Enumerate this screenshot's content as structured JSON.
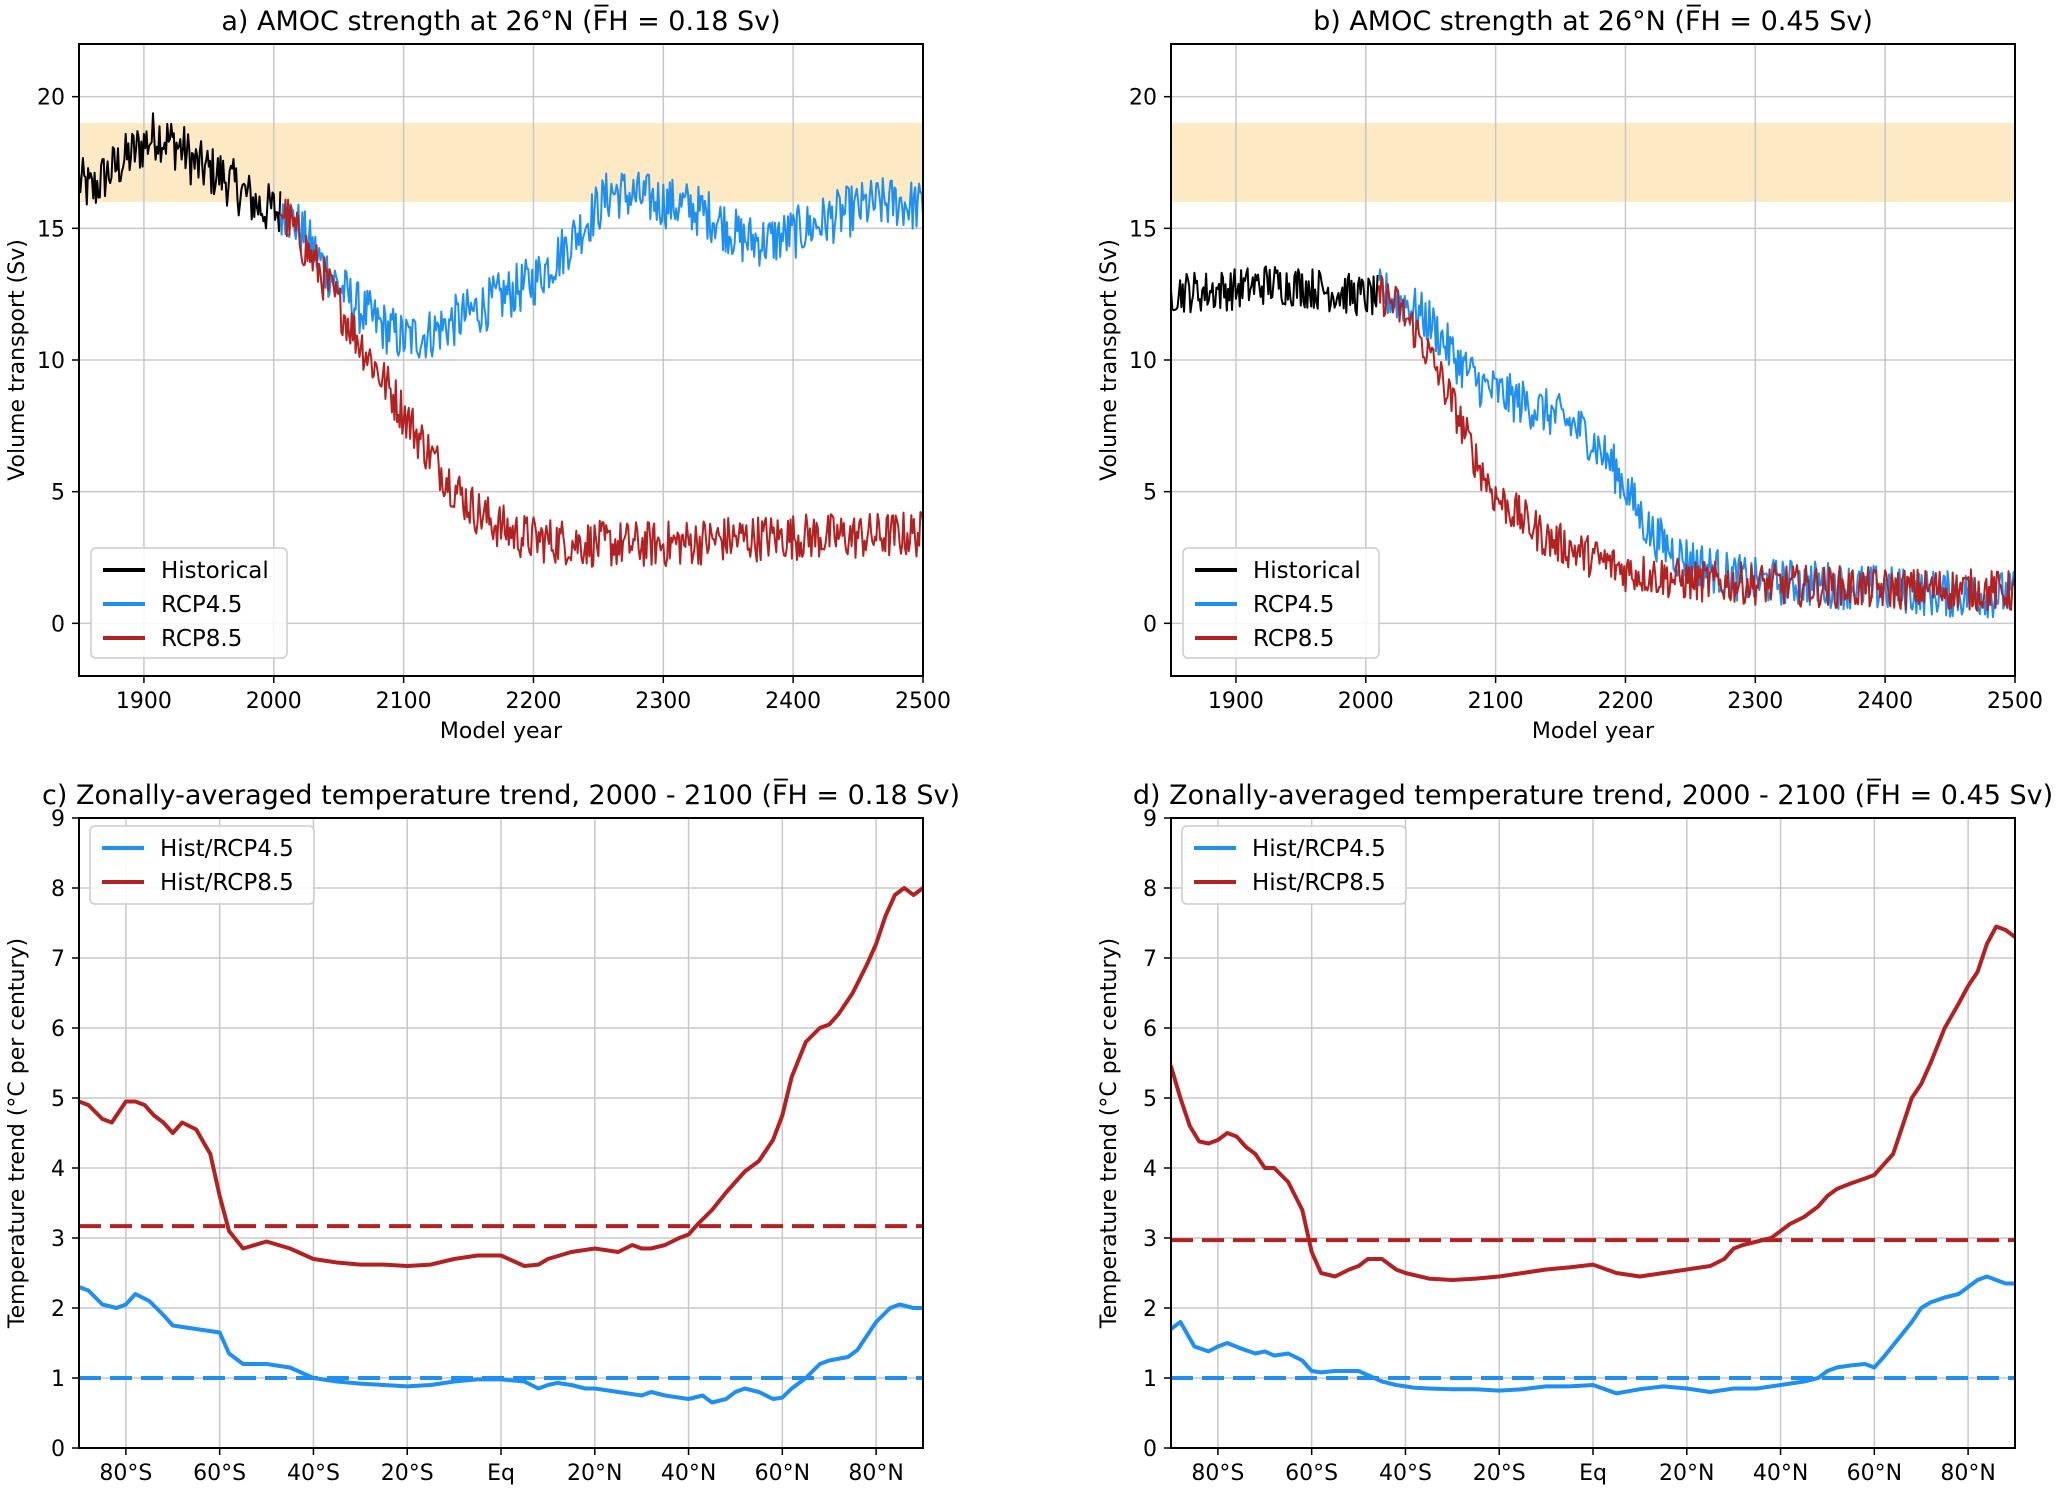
{
  "chart_data": [
    {
      "id": "a",
      "type": "line",
      "title": "a) AMOC strength at 26°N (F̅H = 0.18 Sv)",
      "xlabel": "Model year",
      "ylabel": "Volume transport (Sv)",
      "xlim": [
        1850,
        2500
      ],
      "ylim": [
        -2,
        22
      ],
      "xticks": [
        1900,
        2000,
        2100,
        2200,
        2300,
        2400,
        2500
      ],
      "xtick_labels": [
        "1900",
        "2000",
        "2100",
        "2200",
        "2300",
        "2400",
        "2500"
      ],
      "yticks": [
        0,
        5,
        10,
        15,
        20
      ],
      "ytick_labels": [
        "0",
        "5",
        "10",
        "15",
        "20"
      ],
      "grid": true,
      "observed_band": {
        "ymin": 16,
        "ymax": 19,
        "color": "#fde9c4"
      },
      "legend": {
        "placement": "lower-left",
        "labels": [
          "Historical",
          "RCP4.5",
          "RCP8.5"
        ]
      },
      "series": [
        {
          "name": "Historical",
          "color": "#000000",
          "noise": 1.0,
          "x": [
            1850,
            1860,
            1870,
            1880,
            1890,
            1900,
            1910,
            1920,
            1930,
            1940,
            1950,
            1960,
            1970,
            1980,
            1990,
            2000,
            2005
          ],
          "y": [
            16.8,
            16.4,
            17.0,
            17.4,
            17.8,
            18.2,
            18.6,
            18.3,
            18.0,
            17.4,
            17.2,
            17.0,
            16.6,
            16.2,
            15.8,
            15.7,
            15.6
          ]
        },
        {
          "name": "RCP4.5",
          "color": "#1f8ff0",
          "noise": 1.0,
          "x": [
            2005,
            2020,
            2035,
            2050,
            2065,
            2080,
            2100,
            2120,
            2140,
            2160,
            2180,
            2200,
            2220,
            2240,
            2260,
            2280,
            2300,
            2320,
            2340,
            2360,
            2380,
            2400,
            2420,
            2440,
            2460,
            2480,
            2500
          ],
          "y": [
            15.8,
            15.0,
            13.8,
            12.8,
            12.0,
            11.4,
            10.8,
            11.0,
            11.5,
            12.0,
            12.5,
            13.0,
            14.0,
            15.2,
            16.4,
            16.2,
            16.0,
            15.8,
            15.4,
            14.6,
            14.5,
            14.8,
            15.2,
            15.6,
            15.9,
            16.0,
            15.8
          ]
        },
        {
          "name": "RCP8.5",
          "color": "#b22222",
          "noise": 0.9,
          "x": [
            2005,
            2020,
            2035,
            2050,
            2065,
            2080,
            2095,
            2110,
            2125,
            2140,
            2155,
            2170,
            2185,
            2200,
            2250,
            2300,
            2350,
            2400,
            2450,
            2500
          ],
          "y": [
            15.8,
            14.6,
            13.4,
            12.1,
            10.8,
            9.6,
            8.4,
            7.2,
            6.1,
            5.1,
            4.3,
            3.8,
            3.4,
            3.2,
            3.0,
            3.0,
            3.2,
            3.3,
            3.3,
            3.4
          ]
        }
      ]
    },
    {
      "id": "b",
      "type": "line",
      "title": "b) AMOC strength at 26°N (F̅H = 0.45 Sv)",
      "xlabel": "Model year",
      "ylabel": "Volume transport (Sv)",
      "xlim": [
        1850,
        2500
      ],
      "ylim": [
        -2,
        22
      ],
      "xticks": [
        1900,
        2000,
        2100,
        2200,
        2300,
        2400,
        2500
      ],
      "xtick_labels": [
        "1900",
        "2000",
        "2100",
        "2200",
        "2300",
        "2400",
        "2500"
      ],
      "yticks": [
        0,
        5,
        10,
        15,
        20
      ],
      "ytick_labels": [
        "0",
        "5",
        "10",
        "15",
        "20"
      ],
      "grid": true,
      "observed_band": {
        "ymin": 16,
        "ymax": 19,
        "color": "#fde9c4"
      },
      "legend": {
        "placement": "lower-left",
        "labels": [
          "Historical",
          "RCP4.5",
          "RCP8.5"
        ]
      },
      "series": [
        {
          "name": "Historical",
          "color": "#000000",
          "noise": 0.8,
          "x": [
            1850,
            1875,
            1900,
            1925,
            1950,
            1975,
            2000,
            2010
          ],
          "y": [
            12.6,
            12.6,
            12.7,
            12.9,
            12.8,
            12.6,
            12.4,
            12.4
          ]
        },
        {
          "name": "RCP4.5",
          "color": "#1f8ff0",
          "noise": 0.9,
          "x": [
            2010,
            2030,
            2050,
            2070,
            2090,
            2110,
            2130,
            2150,
            2170,
            2190,
            2200,
            2210,
            2220,
            2240,
            2260,
            2280,
            2300,
            2350,
            2400,
            2450,
            2500
          ],
          "y": [
            12.6,
            12.2,
            11.4,
            10.0,
            9.0,
            8.6,
            8.2,
            7.8,
            7.2,
            6.0,
            5.2,
            4.2,
            3.4,
            2.6,
            2.2,
            1.8,
            1.6,
            1.5,
            1.3,
            1.1,
            1.1
          ]
        },
        {
          "name": "RCP8.5",
          "color": "#b22222",
          "noise": 0.8,
          "x": [
            2010,
            2025,
            2040,
            2055,
            2070,
            2085,
            2100,
            2120,
            2140,
            2160,
            2180,
            2200,
            2250,
            2300,
            2350,
            2400,
            2450,
            2500
          ],
          "y": [
            12.6,
            12.0,
            11.0,
            9.6,
            8.0,
            6.2,
            4.8,
            4.0,
            3.2,
            2.8,
            2.4,
            2.0,
            1.6,
            1.5,
            1.4,
            1.3,
            1.3,
            1.2
          ]
        }
      ]
    },
    {
      "id": "c",
      "type": "line",
      "title": "c) Zonally-averaged temperature trend, 2000 - 2100 (F̅H = 0.18 Sv)",
      "xlabel": "",
      "ylabel": "Temperature trend (°C per century)",
      "xlim": [
        -90,
        90
      ],
      "ylim": [
        0,
        9
      ],
      "xticks": [
        -80,
        -60,
        -40,
        -20,
        0,
        20,
        40,
        60,
        80
      ],
      "xtick_labels": [
        "80°S",
        "60°S",
        "40°S",
        "20°S",
        "Eq",
        "20°N",
        "40°N",
        "60°N",
        "80°N"
      ],
      "yticks": [
        0,
        1,
        2,
        3,
        4,
        5,
        6,
        7,
        8,
        9
      ],
      "ytick_labels": [
        "0",
        "1",
        "2",
        "3",
        "4",
        "5",
        "6",
        "7",
        "8",
        "9"
      ],
      "grid": true,
      "legend": {
        "placement": "top-left",
        "labels": [
          "Hist/RCP4.5",
          "Hist/RCP8.5"
        ]
      },
      "hlines": [
        {
          "name": "Hist/RCP4.5 global mean",
          "y": 1.0,
          "color": "#1f8ff0"
        },
        {
          "name": "Hist/RCP8.5 global mean",
          "y": 3.17,
          "color": "#b22222"
        }
      ],
      "series": [
        {
          "name": "Hist/RCP4.5",
          "color": "#1f8ff0",
          "x": [
            -90,
            -88,
            -85,
            -82,
            -80,
            -78,
            -75,
            -72,
            -70,
            -65,
            -60,
            -58,
            -55,
            -50,
            -45,
            -40,
            -35,
            -30,
            -25,
            -20,
            -15,
            -10,
            -5,
            0,
            5,
            8,
            10,
            12,
            15,
            18,
            20,
            25,
            30,
            32,
            35,
            38,
            40,
            43,
            45,
            48,
            50,
            52,
            55,
            58,
            60,
            62,
            65,
            68,
            70,
            74,
            76,
            78,
            80,
            83,
            85,
            88,
            90
          ],
          "y": [
            2.3,
            2.25,
            2.05,
            2.0,
            2.05,
            2.2,
            2.1,
            1.9,
            1.75,
            1.7,
            1.65,
            1.35,
            1.2,
            1.2,
            1.15,
            1.0,
            0.95,
            0.92,
            0.9,
            0.88,
            0.9,
            0.95,
            0.98,
            0.98,
            0.95,
            0.85,
            0.9,
            0.93,
            0.9,
            0.85,
            0.85,
            0.8,
            0.75,
            0.8,
            0.75,
            0.72,
            0.7,
            0.75,
            0.65,
            0.7,
            0.8,
            0.85,
            0.8,
            0.7,
            0.72,
            0.85,
            1.0,
            1.2,
            1.25,
            1.3,
            1.4,
            1.6,
            1.8,
            2.0,
            2.05,
            2.0,
            2.0
          ]
        },
        {
          "name": "Hist/RCP8.5",
          "color": "#b22222",
          "x": [
            -90,
            -88,
            -85,
            -83,
            -80,
            -78,
            -76,
            -74,
            -72,
            -70,
            -68,
            -65,
            -62,
            -60,
            -58,
            -55,
            -50,
            -45,
            -40,
            -35,
            -30,
            -25,
            -20,
            -15,
            -10,
            -5,
            0,
            5,
            8,
            10,
            15,
            20,
            25,
            28,
            30,
            32,
            35,
            38,
            40,
            42,
            45,
            48,
            50,
            52,
            55,
            58,
            60,
            62,
            65,
            68,
            70,
            72,
            75,
            78,
            80,
            82,
            84,
            86,
            88,
            90
          ],
          "y": [
            4.95,
            4.9,
            4.7,
            4.65,
            4.95,
            4.95,
            4.9,
            4.75,
            4.65,
            4.5,
            4.65,
            4.55,
            4.2,
            3.6,
            3.1,
            2.85,
            2.95,
            2.85,
            2.7,
            2.65,
            2.62,
            2.62,
            2.6,
            2.62,
            2.7,
            2.75,
            2.75,
            2.6,
            2.62,
            2.7,
            2.8,
            2.85,
            2.8,
            2.9,
            2.85,
            2.85,
            2.9,
            3.0,
            3.05,
            3.2,
            3.4,
            3.65,
            3.8,
            3.95,
            4.1,
            4.4,
            4.75,
            5.3,
            5.8,
            6.0,
            6.05,
            6.2,
            6.5,
            6.9,
            7.2,
            7.6,
            7.9,
            8.0,
            7.9,
            8.0
          ]
        }
      ]
    },
    {
      "id": "d",
      "type": "line",
      "title": "d) Zonally-averaged temperature trend, 2000 - 2100 (F̅H = 0.45 Sv)",
      "xlabel": "",
      "ylabel": "Temperature trend (°C per century)",
      "xlim": [
        -90,
        90
      ],
      "ylim": [
        0,
        9
      ],
      "xticks": [
        -80,
        -60,
        -40,
        -20,
        0,
        20,
        40,
        60,
        80
      ],
      "xtick_labels": [
        "80°S",
        "60°S",
        "40°S",
        "20°S",
        "Eq",
        "20°N",
        "40°N",
        "60°N",
        "80°N"
      ],
      "yticks": [
        0,
        1,
        2,
        3,
        4,
        5,
        6,
        7,
        8,
        9
      ],
      "ytick_labels": [
        "0",
        "1",
        "2",
        "3",
        "4",
        "5",
        "6",
        "7",
        "8",
        "9"
      ],
      "grid": true,
      "legend": {
        "placement": "top-left",
        "labels": [
          "Hist/RCP4.5",
          "Hist/RCP8.5"
        ]
      },
      "hlines": [
        {
          "name": "Hist/RCP4.5 global mean",
          "y": 1.0,
          "color": "#1f8ff0"
        },
        {
          "name": "Hist/RCP8.5 global mean",
          "y": 2.97,
          "color": "#b22222"
        }
      ],
      "series": [
        {
          "name": "Hist/RCP4.5",
          "color": "#1f8ff0",
          "x": [
            -90,
            -88,
            -85,
            -82,
            -80,
            -78,
            -75,
            -72,
            -70,
            -68,
            -65,
            -62,
            -60,
            -58,
            -55,
            -50,
            -45,
            -42,
            -40,
            -38,
            -35,
            -30,
            -25,
            -20,
            -15,
            -10,
            -5,
            0,
            5,
            10,
            15,
            20,
            25,
            30,
            35,
            40,
            45,
            48,
            50,
            52,
            55,
            58,
            60,
            62,
            65,
            68,
            70,
            72,
            75,
            78,
            80,
            82,
            84,
            86,
            88,
            90
          ],
          "y": [
            1.7,
            1.8,
            1.45,
            1.38,
            1.45,
            1.5,
            1.42,
            1.35,
            1.38,
            1.32,
            1.35,
            1.25,
            1.1,
            1.08,
            1.1,
            1.1,
            0.95,
            0.9,
            0.88,
            0.86,
            0.85,
            0.84,
            0.84,
            0.82,
            0.84,
            0.88,
            0.88,
            0.9,
            0.78,
            0.84,
            0.88,
            0.85,
            0.8,
            0.85,
            0.85,
            0.9,
            0.95,
            1.0,
            1.1,
            1.15,
            1.18,
            1.2,
            1.15,
            1.3,
            1.55,
            1.8,
            2.0,
            2.08,
            2.15,
            2.2,
            2.3,
            2.4,
            2.45,
            2.4,
            2.35,
            2.35
          ]
        },
        {
          "name": "Hist/RCP8.5",
          "color": "#b22222",
          "x": [
            -90,
            -88,
            -86,
            -84,
            -82,
            -80,
            -78,
            -76,
            -74,
            -72,
            -70,
            -68,
            -65,
            -62,
            -60,
            -58,
            -55,
            -52,
            -50,
            -48,
            -45,
            -42,
            -40,
            -35,
            -30,
            -25,
            -20,
            -15,
            -10,
            -5,
            0,
            5,
            10,
            15,
            20,
            25,
            28,
            30,
            32,
            35,
            38,
            40,
            42,
            45,
            48,
            50,
            52,
            55,
            58,
            60,
            62,
            64,
            66,
            68,
            70,
            72,
            75,
            78,
            80,
            82,
            84,
            86,
            88,
            90
          ],
          "y": [
            5.45,
            5.0,
            4.6,
            4.38,
            4.35,
            4.4,
            4.5,
            4.45,
            4.3,
            4.2,
            4.0,
            4.0,
            3.8,
            3.4,
            2.8,
            2.5,
            2.45,
            2.55,
            2.6,
            2.7,
            2.7,
            2.55,
            2.5,
            2.42,
            2.4,
            2.42,
            2.45,
            2.5,
            2.55,
            2.58,
            2.62,
            2.5,
            2.45,
            2.5,
            2.55,
            2.6,
            2.7,
            2.85,
            2.9,
            2.95,
            3.0,
            3.1,
            3.2,
            3.3,
            3.45,
            3.6,
            3.7,
            3.78,
            3.85,
            3.9,
            4.05,
            4.2,
            4.6,
            5.0,
            5.2,
            5.5,
            6.0,
            6.35,
            6.6,
            6.8,
            7.2,
            7.45,
            7.4,
            7.3
          ]
        }
      ]
    }
  ]
}
